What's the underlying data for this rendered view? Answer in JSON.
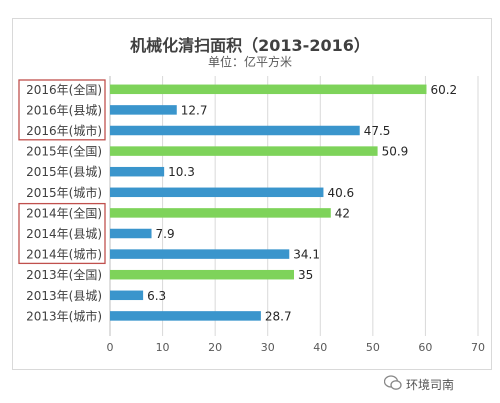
{
  "colors": {
    "national": "#7ed35a",
    "other": "#3a95cc",
    "grid": "#d9d9d9",
    "highlight": "#c0504d"
  },
  "watermark": "环境司南",
  "chart_data": {
    "type": "bar",
    "orientation": "horizontal",
    "title": "机械化清扫面积（2013-2016）",
    "subtitle": "单位：亿平方米",
    "categories": [
      "2016年(全国)",
      "2016年(县城)",
      "2016年(城市)",
      "2015年(全国)",
      "2015年(县城)",
      "2015年(城市)",
      "2014年(全国)",
      "2014年(县城)",
      "2014年(城市)",
      "2013年(全国)",
      "2013年(县城)",
      "2013年(城市)"
    ],
    "values": [
      60.2,
      12.7,
      47.5,
      50.9,
      10.3,
      40.6,
      42,
      7.9,
      34.1,
      35,
      6.3,
      28.7
    ],
    "value_labels": [
      "60.2",
      "12.7",
      "47.5",
      "50.9",
      "10.3",
      "40.6",
      "42",
      "7.9",
      "34.1",
      "35",
      "6.3",
      "28.7"
    ],
    "xticks": [
      "0",
      "10",
      "20",
      "30",
      "40",
      "50",
      "60",
      "70"
    ],
    "xlim": [
      0,
      70
    ],
    "grid": true,
    "legend": "none",
    "highlighted_groups": [
      "2016",
      "2014"
    ]
  }
}
